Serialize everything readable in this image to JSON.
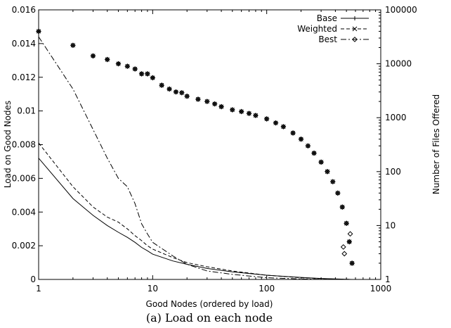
{
  "chart_data": {
    "type": "line",
    "caption": "(a) Load on each node",
    "xlabel": "Good Nodes (ordered by load)",
    "ylabel": "Load on Good Nodes",
    "y2label": "Number of Files Offered",
    "x_scale": "log",
    "y2_scale": "log",
    "xlim": [
      1,
      1000
    ],
    "ylim": [
      0,
      0.016
    ],
    "y2lim": [
      1,
      100000
    ],
    "x_ticks": [
      "1",
      "10",
      "100",
      "1000"
    ],
    "y_ticks": [
      "0",
      "0.002",
      "0.004",
      "0.006",
      "0.008",
      "0.01",
      "0.012",
      "0.014",
      "0.016"
    ],
    "y2_ticks": [
      "1",
      "10",
      "100",
      "1000",
      "10000",
      "100000"
    ],
    "legend_position": "top-right",
    "legend": [
      {
        "name": "Base",
        "dash": "",
        "marker": "plus"
      },
      {
        "name": "Weighted",
        "dash": "5,3",
        "marker": "cross"
      },
      {
        "name": "Best",
        "dash": "8,3,2,3",
        "marker": "diamond"
      }
    ],
    "load_series": [
      {
        "name": "Base",
        "x": [
          1,
          2,
          3,
          4,
          5,
          6,
          7,
          8,
          9,
          10,
          15,
          20,
          30,
          50,
          100,
          200,
          300,
          400,
          500,
          560
        ],
        "y": [
          0.0072,
          0.0048,
          0.0038,
          0.0032,
          0.0028,
          0.0025,
          0.0022,
          0.0019,
          0.0017,
          0.0015,
          0.0011,
          0.0009,
          0.00065,
          0.00045,
          0.00025,
          0.00012,
          6e-05,
          3e-05,
          1e-05,
          0.0
        ]
      },
      {
        "name": "Weighted",
        "x": [
          1,
          2,
          3,
          4,
          5,
          6,
          7,
          8,
          9,
          10,
          15,
          20,
          30,
          50,
          100,
          200,
          300,
          400,
          500,
          560
        ],
        "y": [
          0.0081,
          0.0055,
          0.0043,
          0.0037,
          0.0034,
          0.003,
          0.0026,
          0.0023,
          0.002,
          0.0018,
          0.0013,
          0.001,
          0.00075,
          0.0005,
          0.00025,
          0.0001,
          5e-05,
          2e-05,
          1e-05,
          0.0
        ]
      },
      {
        "name": "Best",
        "x": [
          1,
          2,
          3,
          4,
          5,
          6,
          7,
          8,
          9,
          10,
          15,
          20,
          30,
          50,
          100,
          200,
          300,
          400,
          500,
          560
        ],
        "y": [
          0.0144,
          0.0113,
          0.0089,
          0.0072,
          0.006,
          0.0055,
          0.0045,
          0.0033,
          0.0027,
          0.0022,
          0.0014,
          0.0009,
          0.0005,
          0.0003,
          0.0001,
          3e-05,
          1e-05,
          0.0,
          0.0,
          0.0
        ]
      }
    ],
    "files_offered": {
      "x": [
        1,
        2,
        3,
        4,
        5,
        6,
        7,
        8,
        9,
        10,
        12,
        14,
        16,
        18,
        20,
        25,
        30,
        35,
        40,
        50,
        60,
        70,
        80,
        100,
        120,
        140,
        170,
        200,
        230,
        260,
        300,
        340,
        380,
        420,
        460,
        500,
        530,
        560
      ],
      "files": [
        40000,
        22000,
        14000,
        12000,
        10000,
        9000,
        8000,
        6500,
        6500,
        5500,
        4000,
        3400,
        3000,
        2900,
        2500,
        2200,
        2000,
        1800,
        1600,
        1400,
        1300,
        1200,
        1100,
        950,
        800,
        680,
        520,
        400,
        300,
        220,
        150,
        100,
        65,
        40,
        22,
        11,
        5,
        2
      ],
      "outliers_x": [
        470,
        480,
        540
      ],
      "outliers_files": [
        4,
        3,
        7
      ]
    }
  }
}
